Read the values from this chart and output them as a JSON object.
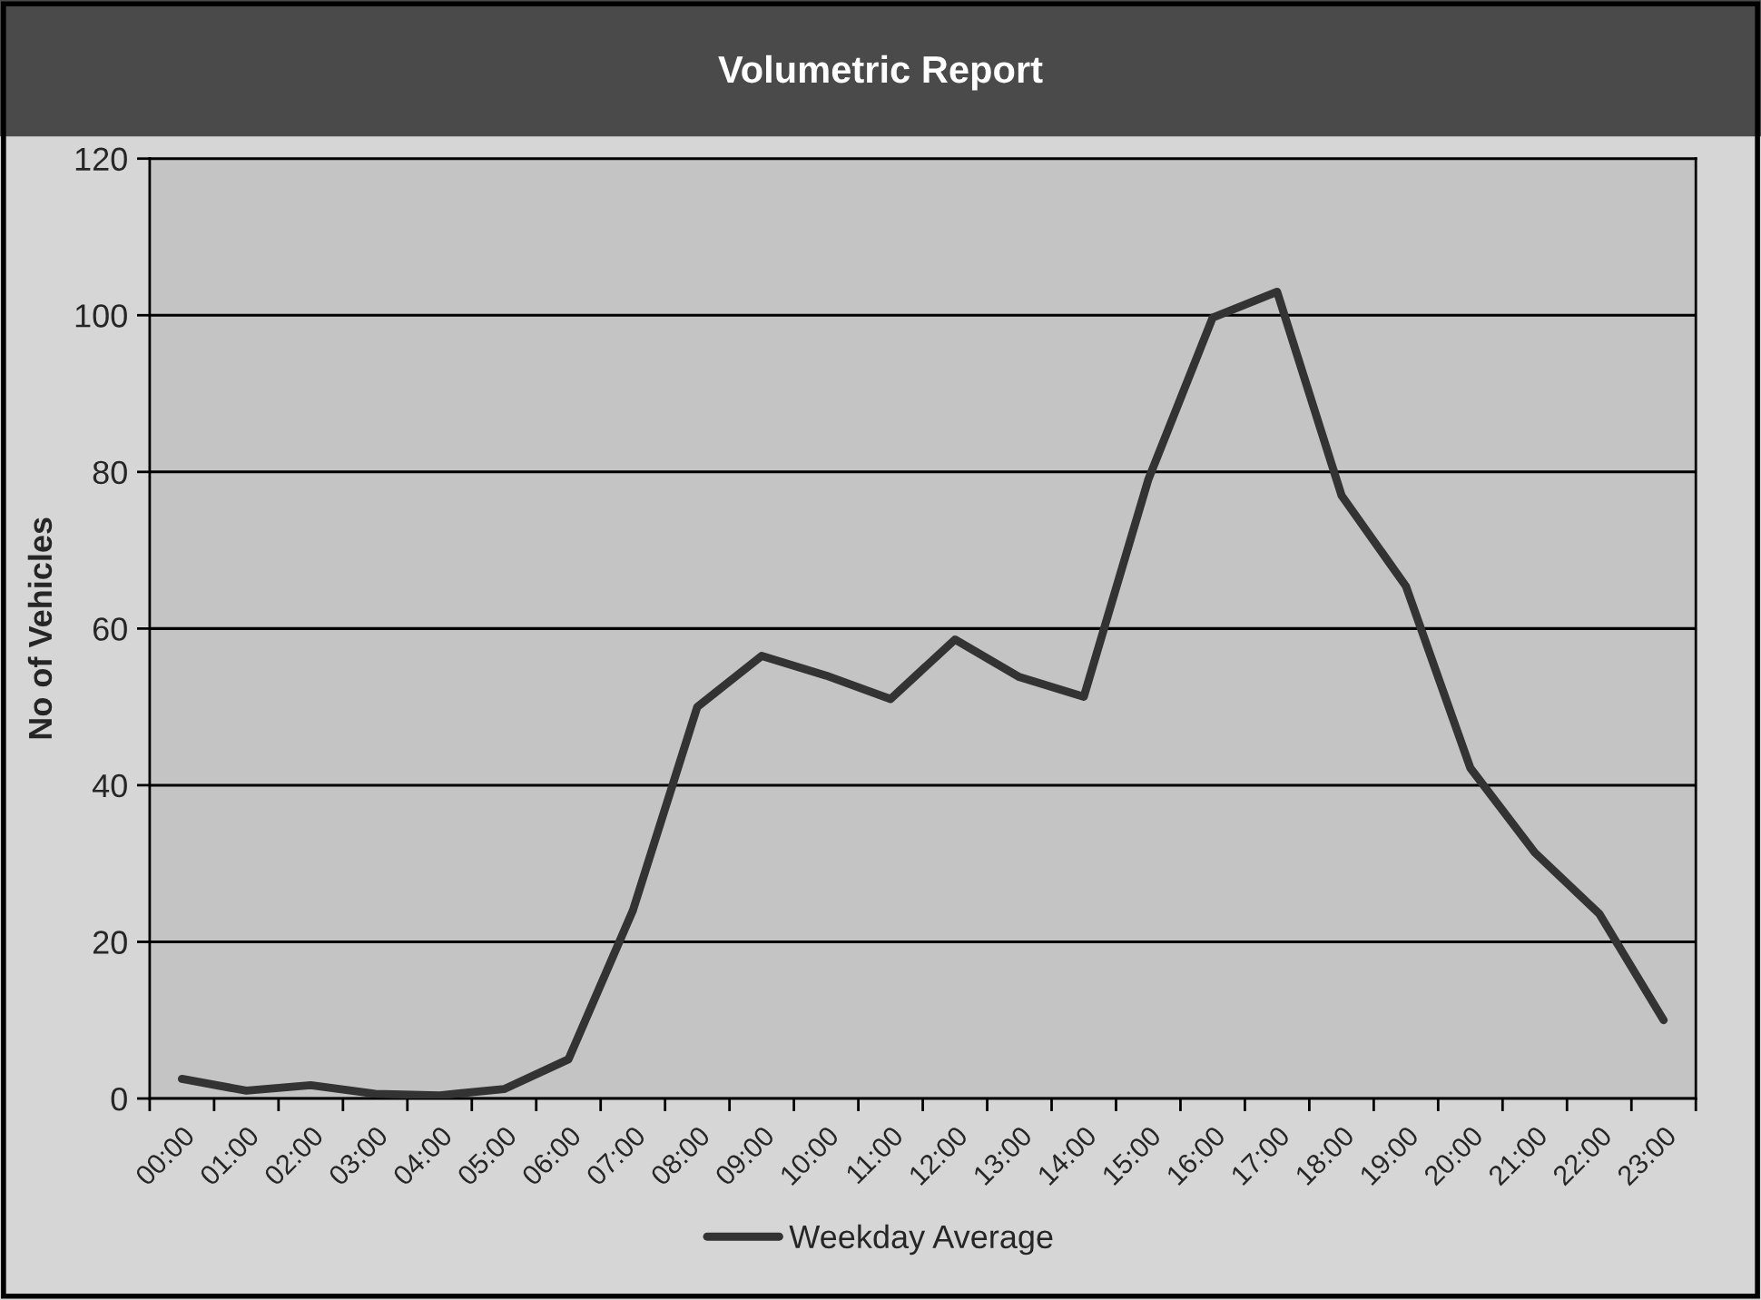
{
  "chart_data": {
    "type": "line",
    "title": "Volumetric Report",
    "ylabel": "No of Vehicles",
    "categories": [
      "00:00",
      "01:00",
      "02:00",
      "03:00",
      "04:00",
      "05:00",
      "06:00",
      "07:00",
      "08:00",
      "09:00",
      "10:00",
      "11:00",
      "12:00",
      "13:00",
      "14:00",
      "15:00",
      "16:00",
      "17:00",
      "18:00",
      "19:00",
      "20:00",
      "21:00",
      "22:00",
      "23:00"
    ],
    "series": [
      {
        "name": "Weekday Average",
        "color": "#333333",
        "values": [
          2.5,
          1,
          1.7,
          0.6,
          0.4,
          1.2,
          5,
          24,
          50,
          56.5,
          54,
          51,
          58.6,
          53.8,
          51.3,
          79,
          99.7,
          103,
          77,
          65.4,
          42.2,
          31.4,
          23.6,
          10
        ]
      }
    ],
    "ylim": [
      0,
      120
    ],
    "yticks": [
      0,
      20,
      40,
      60,
      80,
      100,
      120
    ],
    "grid": "y",
    "legend": "bottom",
    "line_style": "solid"
  }
}
